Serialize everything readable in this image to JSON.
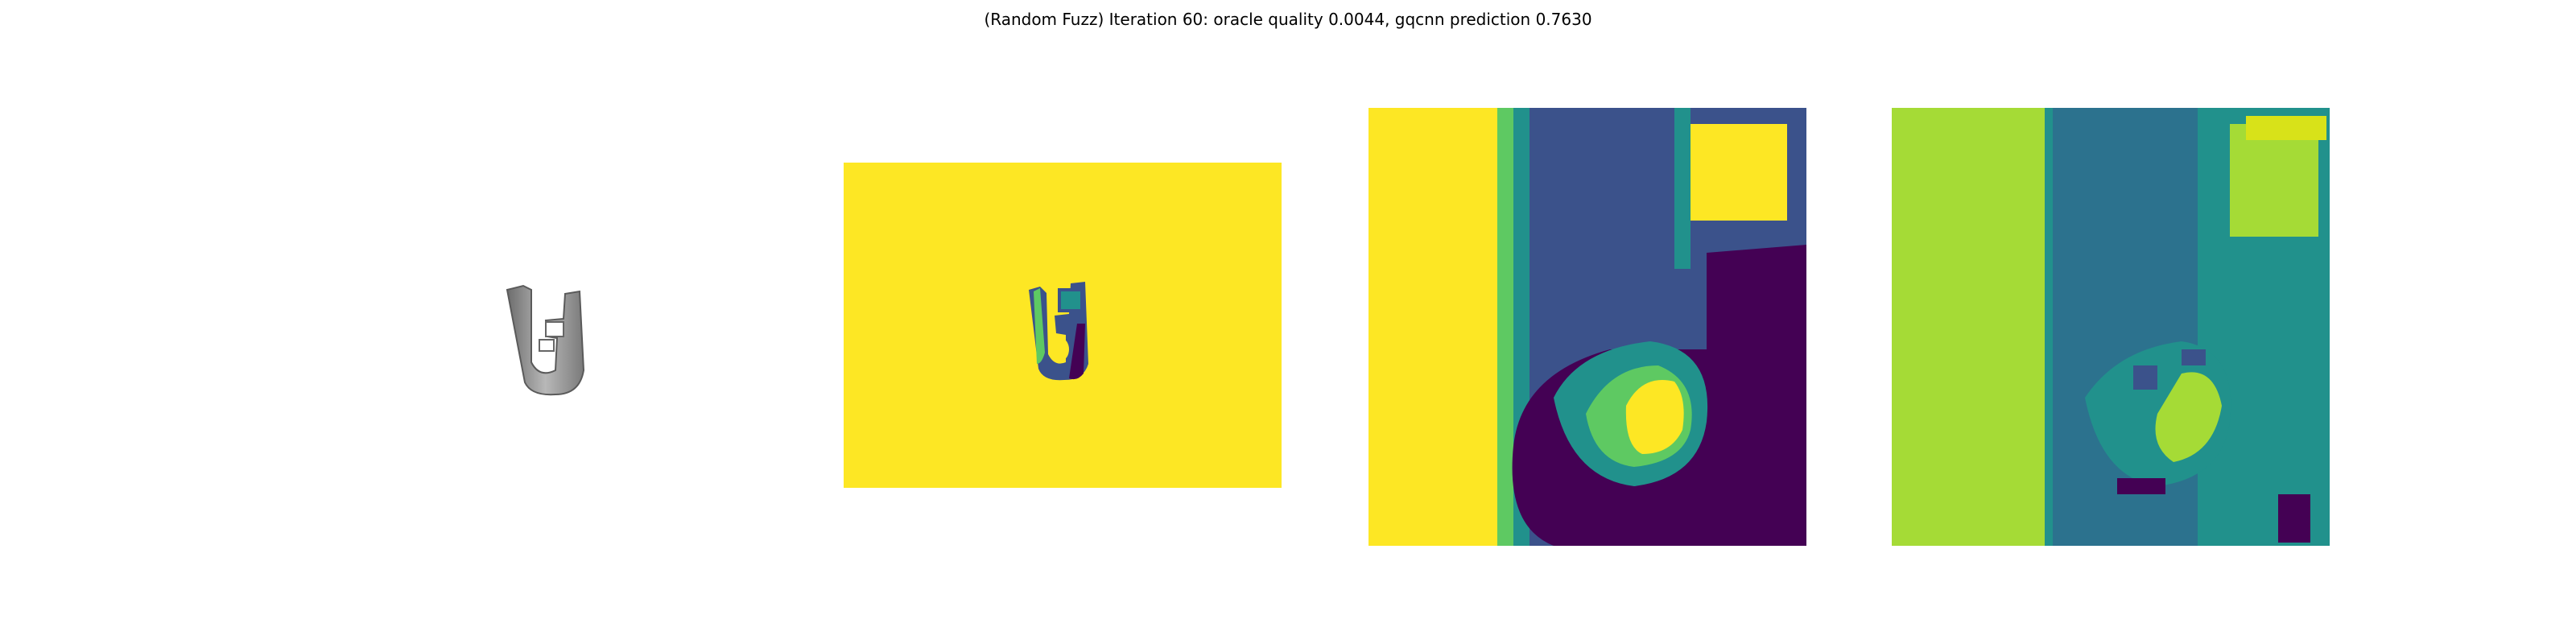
{
  "figure": {
    "title": "(Random Fuzz) Iteration 60: oracle quality 0.0044, gqcnn prediction 0.7630"
  },
  "colors": {
    "viridis_yellow": "#fde724",
    "viridis_lime": "#a5db36",
    "viridis_green": "#5ec962",
    "viridis_teal": "#21918c",
    "viridis_blue": "#3b528b",
    "viridis_purple": "#440154",
    "object_gray": "#8c8c8c"
  },
  "panels": [
    {
      "kind": "rendered-object",
      "icon": "object-render"
    },
    {
      "kind": "depth-image",
      "icon": "depth-map"
    },
    {
      "kind": "depth-crop",
      "icon": "depth-crop"
    },
    {
      "kind": "fuzzed-depth-crop",
      "icon": "fuzzed-crop"
    }
  ]
}
